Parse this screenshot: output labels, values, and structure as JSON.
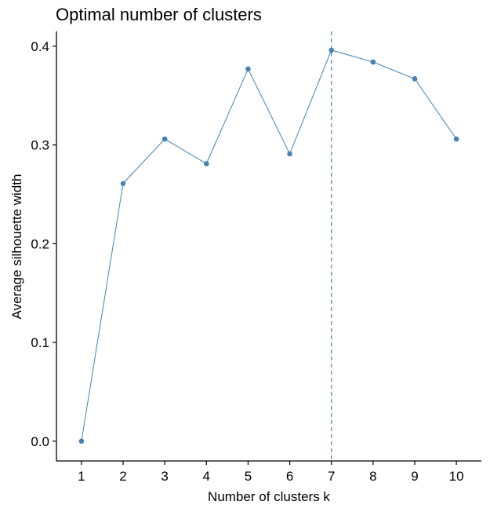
{
  "chart_data": {
    "type": "line",
    "title": "Optimal number of clusters",
    "xlabel": "Number of clusters k",
    "ylabel": "Average silhouette width",
    "x": [
      1,
      2,
      3,
      4,
      5,
      6,
      7,
      8,
      9,
      10
    ],
    "series": [
      {
        "values": [
          0.0,
          0.261,
          0.306,
          0.281,
          0.377,
          0.291,
          0.396,
          0.384,
          0.367,
          0.306
        ]
      }
    ],
    "xlim": [
      0.4,
      10.6
    ],
    "ylim": [
      -0.02,
      0.415
    ],
    "yticks": [
      "0.0",
      "0.1",
      "0.2",
      "0.3",
      "0.4"
    ],
    "xticks": [
      "1",
      "2",
      "3",
      "4",
      "5",
      "6",
      "7",
      "8",
      "9",
      "10"
    ],
    "vline": {
      "x": 7,
      "style": "dashed"
    },
    "grid": false,
    "legend": "none",
    "colors": {
      "line": "#4682B4",
      "point": "#4682B4",
      "vline": "#4682B4",
      "axis": "#000000"
    }
  }
}
